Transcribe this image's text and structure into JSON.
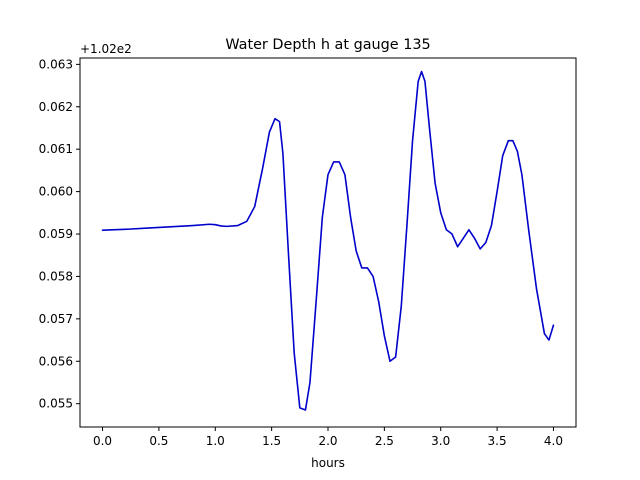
{
  "chart_data": {
    "type": "line",
    "title": "Water Depth h at gauge 135",
    "xlabel": "hours",
    "ylabel": "",
    "offset_label": "+1.02e2",
    "xlim": [
      -0.2,
      4.2
    ],
    "ylim": [
      0.05445,
      0.06315
    ],
    "xticks": [
      0.0,
      0.5,
      1.0,
      1.5,
      2.0,
      2.5,
      3.0,
      3.5,
      4.0
    ],
    "xtick_labels": [
      "0.0",
      "0.5",
      "1.0",
      "1.5",
      "2.0",
      "2.5",
      "3.0",
      "3.5",
      "4.0"
    ],
    "yticks": [
      0.055,
      0.056,
      0.057,
      0.058,
      0.059,
      0.06,
      0.061,
      0.062,
      0.063
    ],
    "ytick_labels": [
      "0.055",
      "0.056",
      "0.057",
      "0.058",
      "0.059",
      "0.060",
      "0.061",
      "0.062",
      "0.063"
    ],
    "grid": false,
    "series": [
      {
        "color": "#0000cc",
        "x": [
          0.0,
          0.2,
          0.4,
          0.6,
          0.8,
          0.95,
          1.0,
          1.05,
          1.1,
          1.2,
          1.28,
          1.35,
          1.42,
          1.48,
          1.53,
          1.57,
          1.6,
          1.65,
          1.7,
          1.75,
          1.8,
          1.84,
          1.9,
          1.95,
          2.0,
          2.05,
          2.1,
          2.15,
          2.2,
          2.25,
          2.3,
          2.35,
          2.4,
          2.45,
          2.5,
          2.55,
          2.6,
          2.65,
          2.7,
          2.75,
          2.8,
          2.83,
          2.86,
          2.9,
          2.95,
          3.0,
          3.05,
          3.1,
          3.15,
          3.2,
          3.25,
          3.3,
          3.35,
          3.4,
          3.45,
          3.5,
          3.55,
          3.6,
          3.64,
          3.68,
          3.72,
          3.78,
          3.85,
          3.92,
          3.96,
          4.0
        ],
        "y": [
          0.05909,
          0.05911,
          0.05914,
          0.05917,
          0.0592,
          0.05923,
          0.05922,
          0.05919,
          0.05918,
          0.0592,
          0.0593,
          0.05965,
          0.06055,
          0.0614,
          0.06172,
          0.06165,
          0.0609,
          0.0585,
          0.0562,
          0.0549,
          0.05485,
          0.0555,
          0.0576,
          0.0594,
          0.0604,
          0.0607,
          0.0607,
          0.0604,
          0.0594,
          0.0586,
          0.0582,
          0.0582,
          0.058,
          0.0574,
          0.0566,
          0.056,
          0.0561,
          0.0573,
          0.0592,
          0.0612,
          0.0626,
          0.06283,
          0.0626,
          0.0615,
          0.0602,
          0.0595,
          0.0591,
          0.059,
          0.0587,
          0.0589,
          0.0591,
          0.0589,
          0.05865,
          0.0588,
          0.0592,
          0.06,
          0.06085,
          0.0612,
          0.0612,
          0.06095,
          0.0604,
          0.0591,
          0.0577,
          0.05665,
          0.0565,
          0.05685
        ]
      }
    ]
  }
}
